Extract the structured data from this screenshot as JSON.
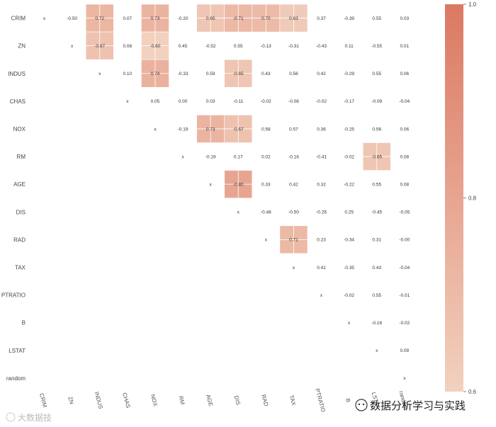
{
  "chart_data": {
    "type": "heatmap",
    "variables": [
      "CRIM",
      "ZN",
      "INDUS",
      "CHAS",
      "NOX",
      "RM",
      "AGE",
      "DIS",
      "RAD",
      "TAX",
      "PTRATIO",
      "B",
      "LSTAT",
      "random"
    ],
    "upper_triangle_text": [
      [
        "x",
        "-0.50",
        "0.72",
        "0.07",
        "0.73",
        "-0.20",
        "0.65",
        "-0.71",
        "0.70",
        "0.63",
        "0.37",
        "-0.39",
        "0.55",
        "0.03"
      ],
      [
        "",
        "x",
        "-0.67",
        "0.08",
        "-0.60",
        "0.45",
        "-0.52",
        "0.55",
        "-0.13",
        "-0.31",
        "-0.43",
        "0.11",
        "-0.55",
        "0.01"
      ],
      [
        "",
        "",
        "x",
        "0.10",
        "0.74",
        "-0.33",
        "0.59",
        "-0.65",
        "0.43",
        "0.56",
        "0.42",
        "-0.29",
        "0.55",
        "0.06"
      ],
      [
        "",
        "",
        "",
        "x",
        "0.05",
        "0.00",
        "0.03",
        "-0.11",
        "-0.02",
        "-0.06",
        "-0.02",
        "-0.17",
        "-0.09",
        "-0.04"
      ],
      [
        "",
        "",
        "",
        "",
        "x",
        "-0.19",
        "0.73",
        "-0.67",
        "0.58",
        "0.57",
        "0.36",
        "-0.25",
        "0.56",
        "0.06"
      ],
      [
        "",
        "",
        "",
        "",
        "",
        "x",
        "-0.19",
        "0.17",
        "0.02",
        "-0.16",
        "-0.41",
        "-0.02",
        "-0.65",
        "0.08"
      ],
      [
        "",
        "",
        "",
        "",
        "",
        "",
        "x",
        "-0.80",
        "0.33",
        "0.42",
        "0.32",
        "-0.22",
        "0.55",
        "0.08"
      ],
      [
        "",
        "",
        "",
        "",
        "",
        "",
        "",
        "x",
        "-0.48",
        "-0.50",
        "-0.26",
        "0.25",
        "-0.45",
        "-0.05"
      ],
      [
        "",
        "",
        "",
        "",
        "",
        "",
        "",
        "",
        "x",
        "0.71",
        "0.23",
        "-0.34",
        "0.31",
        "-0.00"
      ],
      [
        "",
        "",
        "",
        "",
        "",
        "",
        "",
        "",
        "",
        "x",
        "0.41",
        "-0.35",
        "0.43",
        "-0.04"
      ],
      [
        "",
        "",
        "",
        "",
        "",
        "",
        "",
        "",
        "",
        "",
        "x",
        "-0.02",
        "0.55",
        "-0.01"
      ],
      [
        "",
        "",
        "",
        "",
        "",
        "",
        "",
        "",
        "",
        "",
        "",
        "x",
        "-0.16",
        "-0.02"
      ],
      [
        "",
        "",
        "",
        "",
        "",
        "",
        "",
        "",
        "",
        "",
        "",
        "",
        "x",
        "0.09"
      ],
      [
        "",
        "",
        "",
        "",
        "",
        "",
        "",
        "",
        "",
        "",
        "",
        "",
        "",
        "x"
      ]
    ],
    "highlight_threshold": 0.6,
    "colorbar": {
      "min": 0.6,
      "max": 1.0,
      "ticks": [
        "0.6",
        "0.8",
        "1.0"
      ]
    },
    "colors": {
      "low": "#f2d1bf",
      "high": "#db7962"
    },
    "grid": false
  },
  "watermarks": {
    "right": "数据分析学习与实践",
    "left": "大数据技"
  }
}
